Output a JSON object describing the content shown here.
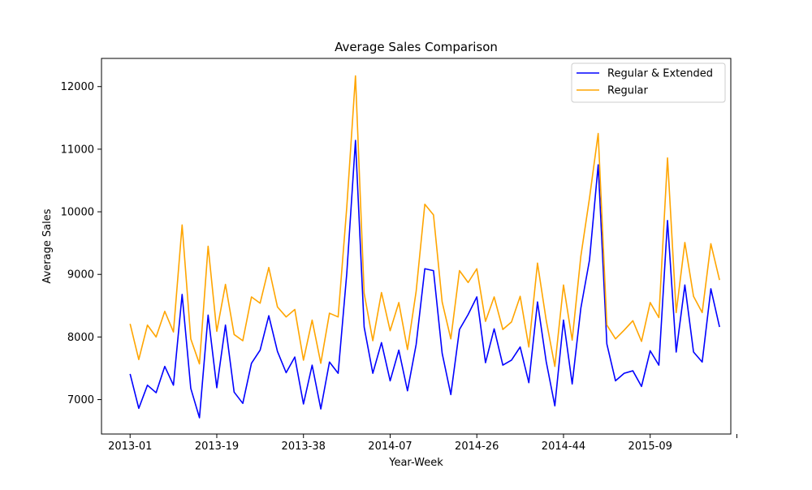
{
  "chart_data": {
    "type": "line",
    "title": "Average Sales Comparison",
    "xlabel": "Year-Week",
    "ylabel": "Average Sales",
    "ylim": [
      6450,
      12450
    ],
    "xlim": [
      -3.3,
      69.3
    ],
    "grid": false,
    "legend_position": "top-right",
    "x_ticks": [
      {
        "index": 0,
        "label": "2013-01"
      },
      {
        "index": 10,
        "label": "2013-19"
      },
      {
        "index": 20,
        "label": "2013-38"
      },
      {
        "index": 30,
        "label": "2014-07"
      },
      {
        "index": 40,
        "label": "2014-26"
      },
      {
        "index": 50,
        "label": "2014-44"
      },
      {
        "index": 60,
        "label": "2015-09"
      },
      {
        "index": 70,
        "label": ""
      }
    ],
    "y_ticks": [
      7000,
      8000,
      9000,
      10000,
      11000,
      12000
    ],
    "series": [
      {
        "name": "Regular & Extended",
        "color": "#0000ff",
        "values": [
          7410,
          6860,
          7230,
          7110,
          7530,
          7230,
          8680,
          7180,
          6710,
          8350,
          7190,
          8190,
          7120,
          6940,
          7580,
          7790,
          8340,
          7770,
          7430,
          7680,
          6930,
          7550,
          6850,
          7600,
          7420,
          9020,
          11140,
          8160,
          7420,
          7910,
          7300,
          7790,
          7140,
          7880,
          9090,
          9060,
          7740,
          7080,
          8120,
          8360,
          8640,
          7590,
          8130,
          7550,
          7630,
          7840,
          7270,
          8560,
          7610,
          6900,
          8270,
          7250,
          8460,
          9230,
          10750,
          7890,
          7300,
          7420,
          7460,
          7210,
          7780,
          7550,
          9860,
          7760,
          8830,
          7760,
          7600,
          8770,
          8160
        ]
      },
      {
        "name": "Regular",
        "color": "#ffa500",
        "values": [
          8210,
          7640,
          8190,
          8000,
          8410,
          8080,
          9790,
          7970,
          7570,
          9450,
          8090,
          8840,
          8040,
          7940,
          8640,
          8540,
          9110,
          8480,
          8320,
          8440,
          7630,
          8270,
          7580,
          8380,
          8320,
          10080,
          12170,
          8700,
          7940,
          8710,
          8100,
          8550,
          7800,
          8730,
          10120,
          9950,
          8560,
          7970,
          9060,
          8870,
          9090,
          8250,
          8640,
          8120,
          8240,
          8650,
          7840,
          9180,
          8270,
          7530,
          8830,
          7950,
          9290,
          10220,
          11250,
          8190,
          7970,
          8110,
          8260,
          7930,
          8550,
          8310,
          10860,
          8390,
          9510,
          8650,
          8390,
          9490,
          8910
        ]
      }
    ]
  }
}
